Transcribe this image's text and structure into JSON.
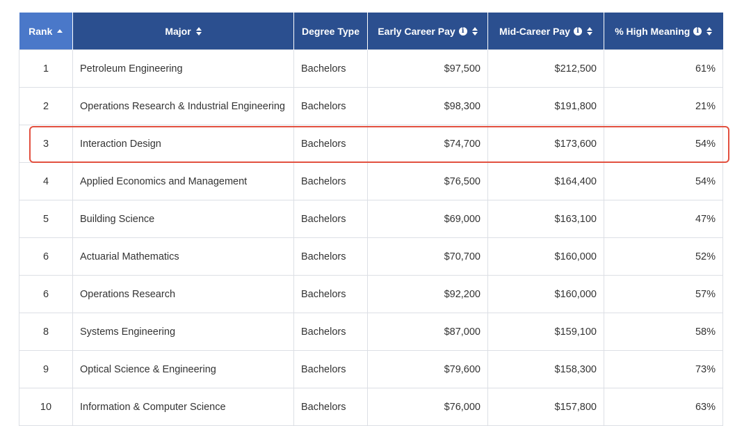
{
  "table": {
    "headers": {
      "rank": "Rank",
      "major": "Major",
      "degree_type": "Degree Type",
      "early_pay": "Early Career Pay",
      "mid_pay": "Mid-Career Pay",
      "high_meaning": "% High Meaning"
    },
    "sorted_column": "rank",
    "sort_direction": "ascending",
    "highlighted_row_rank": "3",
    "highlight_color": "#e2503f",
    "header_color": "#2b4f8f",
    "sorted_header_color": "#4a78c9",
    "rows": [
      {
        "rank": "1",
        "major": "Petroleum Engineering",
        "degree": "Bachelors",
        "early": "$97,500",
        "mid": "$212,500",
        "meaning": "61%"
      },
      {
        "rank": "2",
        "major": "Operations Research & Industrial Engineering",
        "degree": "Bachelors",
        "early": "$98,300",
        "mid": "$191,800",
        "meaning": "21%"
      },
      {
        "rank": "3",
        "major": "Interaction Design",
        "degree": "Bachelors",
        "early": "$74,700",
        "mid": "$173,600",
        "meaning": "54%"
      },
      {
        "rank": "4",
        "major": "Applied Economics and Management",
        "degree": "Bachelors",
        "early": "$76,500",
        "mid": "$164,400",
        "meaning": "54%"
      },
      {
        "rank": "5",
        "major": "Building Science",
        "degree": "Bachelors",
        "early": "$69,000",
        "mid": "$163,100",
        "meaning": "47%"
      },
      {
        "rank": "6",
        "major": "Actuarial Mathematics",
        "degree": "Bachelors",
        "early": "$70,700",
        "mid": "$160,000",
        "meaning": "52%"
      },
      {
        "rank": "6",
        "major": "Operations Research",
        "degree": "Bachelors",
        "early": "$92,200",
        "mid": "$160,000",
        "meaning": "57%"
      },
      {
        "rank": "8",
        "major": "Systems Engineering",
        "degree": "Bachelors",
        "early": "$87,000",
        "mid": "$159,100",
        "meaning": "58%"
      },
      {
        "rank": "9",
        "major": "Optical Science & Engineering",
        "degree": "Bachelors",
        "early": "$79,600",
        "mid": "$158,300",
        "meaning": "73%"
      },
      {
        "rank": "10",
        "major": "Information & Computer Science",
        "degree": "Bachelors",
        "early": "$76,000",
        "mid": "$157,800",
        "meaning": "63%"
      }
    ]
  }
}
